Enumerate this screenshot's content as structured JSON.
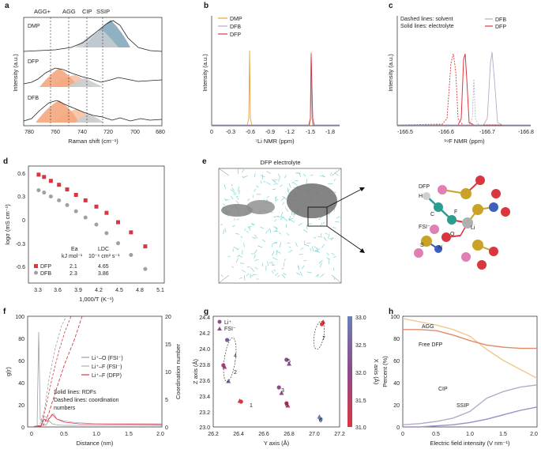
{
  "panels": {
    "a": {
      "label": "a",
      "top_labels": [
        "AGG+",
        "AGG",
        "CIP",
        "SSIP"
      ],
      "traces": [
        "DMP",
        "DFP",
        "DFB"
      ],
      "xlabel": "Raman shift (cm⁻¹)",
      "ylabel": "Intensity (a.u.)",
      "xticks": [
        "780",
        "760",
        "740",
        "720",
        "700",
        "680"
      ]
    },
    "b": {
      "label": "b",
      "legend": [
        "DMP",
        "DFB",
        "DFP"
      ],
      "xlabel": "⁷Li NMR (ppm)",
      "ylabel": "Intensity (a.u.)",
      "xticks": [
        "0",
        "-0.3",
        "-0.6",
        "-0.9",
        "-1.2",
        "-1.5",
        "-1.8"
      ]
    },
    "c": {
      "label": "c",
      "note1": "Dashed lines: solvent",
      "note2": "Solid lines: electrolyte",
      "legend": [
        "DFB",
        "DFP"
      ],
      "xlabel": "¹⁹F NMR (ppm)",
      "ylabel": "Intensity (a.u.)",
      "xticks": [
        "-166.5",
        "-166.6",
        "-166.7",
        "-166.8"
      ]
    },
    "d": {
      "label": "d",
      "ylabel": "logσ (mS cm⁻¹)",
      "xlabel": "1,000/T (K⁻¹)",
      "xticks": [
        "3.3",
        "3.6",
        "3.9",
        "4.2",
        "4.5",
        "4.8",
        "5.1"
      ],
      "yticks": [
        "0.6",
        "0.3",
        "0",
        "-0.3",
        "-0.6"
      ],
      "table": {
        "col1_head1": "Ea",
        "col1_head2": "kJ mol⁻¹",
        "col2_head1": "LDC",
        "col2_head2": "10⁻⁶ cm² s⁻¹",
        "rows": [
          {
            "name": "DFP",
            "ea": "2.1",
            "ldc": "4.65"
          },
          {
            "name": "DFB",
            "ea": "2.3",
            "ldc": "3.86"
          }
        ]
      }
    },
    "e": {
      "label": "e",
      "title": "DFP electrolyte",
      "mol_labels": [
        "DFP",
        "FSI⁻",
        "Li",
        "C",
        "H",
        "F",
        "O",
        "S",
        "N"
      ]
    },
    "f": {
      "label": "f",
      "ylabel_left": "g(r)",
      "ylabel_right": "Coordination number",
      "xlabel": "Distance (nm)",
      "xticks": [
        "0",
        "0.5",
        "1.0",
        "1.5",
        "2.0"
      ],
      "yticks_left": [
        "0",
        "20",
        "40",
        "60",
        "80",
        "100"
      ],
      "yticks_right": [
        "0",
        "5",
        "10",
        "15",
        "20"
      ],
      "legend": [
        "Li⁺–O (FSI⁻)",
        "Li⁺–F (FSI⁻)",
        "Li⁺–F (DFP)"
      ],
      "note1": "Solid lines: RDFs",
      "note2": "Dashed lines: coordination",
      "note3": "numbers"
    },
    "g": {
      "label": "g",
      "legend": [
        "Li⁺",
        "FSI⁻"
      ],
      "xlabel": "Y axis (Å)",
      "ylabel": "Z axis (Å)",
      "clabel": "X axis (Å)",
      "xticks": [
        "26.2",
        "26.4",
        "26.6",
        "26.8",
        "27.0",
        "27.2"
      ],
      "yticks": [
        "24.4",
        "24.2",
        "24.0",
        "23.8",
        "23.6",
        "23.4",
        "23.2",
        "23.0"
      ],
      "cticks": [
        "33.0",
        "32.5",
        "32.0",
        "31.5",
        "31.0"
      ],
      "cluster_ids": [
        "1",
        "2",
        "3",
        "4",
        "5",
        "6",
        "7",
        "8"
      ]
    },
    "h": {
      "label": "h",
      "ylabel": "Percent (%)",
      "xlabel": "Electric field intensity (V nm⁻¹)",
      "xticks": [
        "0",
        "0.5",
        "1.0",
        "1.5",
        "2.0"
      ],
      "yticks": [
        "0",
        "20",
        "40",
        "60",
        "80",
        "100"
      ],
      "series_labels": [
        "AGG",
        "Free DFP",
        "CIP",
        "SSIP"
      ]
    }
  },
  "colors": {
    "dmp": "#e8a33a",
    "dfb": "#b8a9c9",
    "dfp": "#d9373f",
    "red_marker": "#d9373f",
    "grey_marker": "#a0a0a0",
    "peach": "#f4a77e",
    "teal": "#6b97ad",
    "grey_fill": "#c9ced2"
  },
  "chart_data": [
    {
      "type": "scatter",
      "panel": "d",
      "xlabel": "1,000/T (K⁻¹)",
      "ylabel": "logσ (mS cm⁻¹)",
      "xlim": [
        3.2,
        5.2
      ],
      "ylim": [
        -0.8,
        0.7
      ],
      "series": [
        {
          "name": "DFP",
          "x": [
            3.35,
            3.43,
            3.53,
            3.65,
            3.77,
            3.9,
            4.04,
            4.2,
            4.35,
            4.52,
            4.71,
            4.92
          ],
          "y": [
            0.59,
            0.56,
            0.51,
            0.46,
            0.4,
            0.33,
            0.26,
            0.18,
            0.1,
            -0.02,
            -0.15,
            -0.33
          ]
        },
        {
          "name": "DFB",
          "x": [
            3.35,
            3.43,
            3.53,
            3.65,
            3.77,
            3.9,
            4.04,
            4.2,
            4.35,
            4.52,
            4.71,
            4.92
          ],
          "y": [
            0.39,
            0.36,
            0.31,
            0.26,
            0.2,
            0.12,
            0.04,
            -0.05,
            -0.16,
            -0.29,
            -0.44,
            -0.62
          ]
        }
      ]
    },
    {
      "type": "line",
      "panel": "h",
      "xlabel": "Electric field intensity (V nm⁻¹)",
      "ylabel": "Percent (%)",
      "xlim": [
        0,
        2.0
      ],
      "ylim": [
        0,
        100
      ],
      "x": [
        0,
        0.25,
        0.5,
        0.75,
        1.0,
        1.25,
        1.5,
        1.75,
        2.0
      ],
      "series": [
        {
          "name": "AGG",
          "values": [
            98,
            95,
            92,
            88,
            82,
            70,
            60,
            52,
            44
          ]
        },
        {
          "name": "Free DFP",
          "values": [
            88,
            88,
            87,
            83,
            78,
            74,
            72,
            71,
            71
          ]
        },
        {
          "name": "CIP",
          "values": [
            2,
            3,
            5,
            8,
            14,
            26,
            32,
            36,
            38
          ]
        },
        {
          "name": "SSIP",
          "values": [
            0,
            0,
            1,
            2,
            4,
            7,
            11,
            15,
            18
          ]
        }
      ]
    },
    {
      "type": "scatter",
      "panel": "g",
      "xlabel": "Y axis (Å)",
      "ylabel": "Z axis (Å)",
      "xlim": [
        26.2,
        27.2
      ],
      "ylim": [
        23.0,
        24.4
      ],
      "series": [
        {
          "name": "Li⁺",
          "x": [
            26.42,
            26.28,
            26.72,
            26.31,
            26.78,
            27.05,
            27.06,
            26.78
          ],
          "y": [
            23.32,
            23.78,
            23.5,
            24.1,
            23.85,
            23.1,
            24.3,
            23.3
          ]
        },
        {
          "name": "FSI⁻",
          "x": [
            26.41,
            26.29,
            26.74,
            26.32,
            26.8,
            27.04,
            27.07,
            26.79
          ],
          "y": [
            23.33,
            23.76,
            23.43,
            23.58,
            23.8,
            23.13,
            24.33,
            23.27
          ]
        }
      ]
    }
  ]
}
